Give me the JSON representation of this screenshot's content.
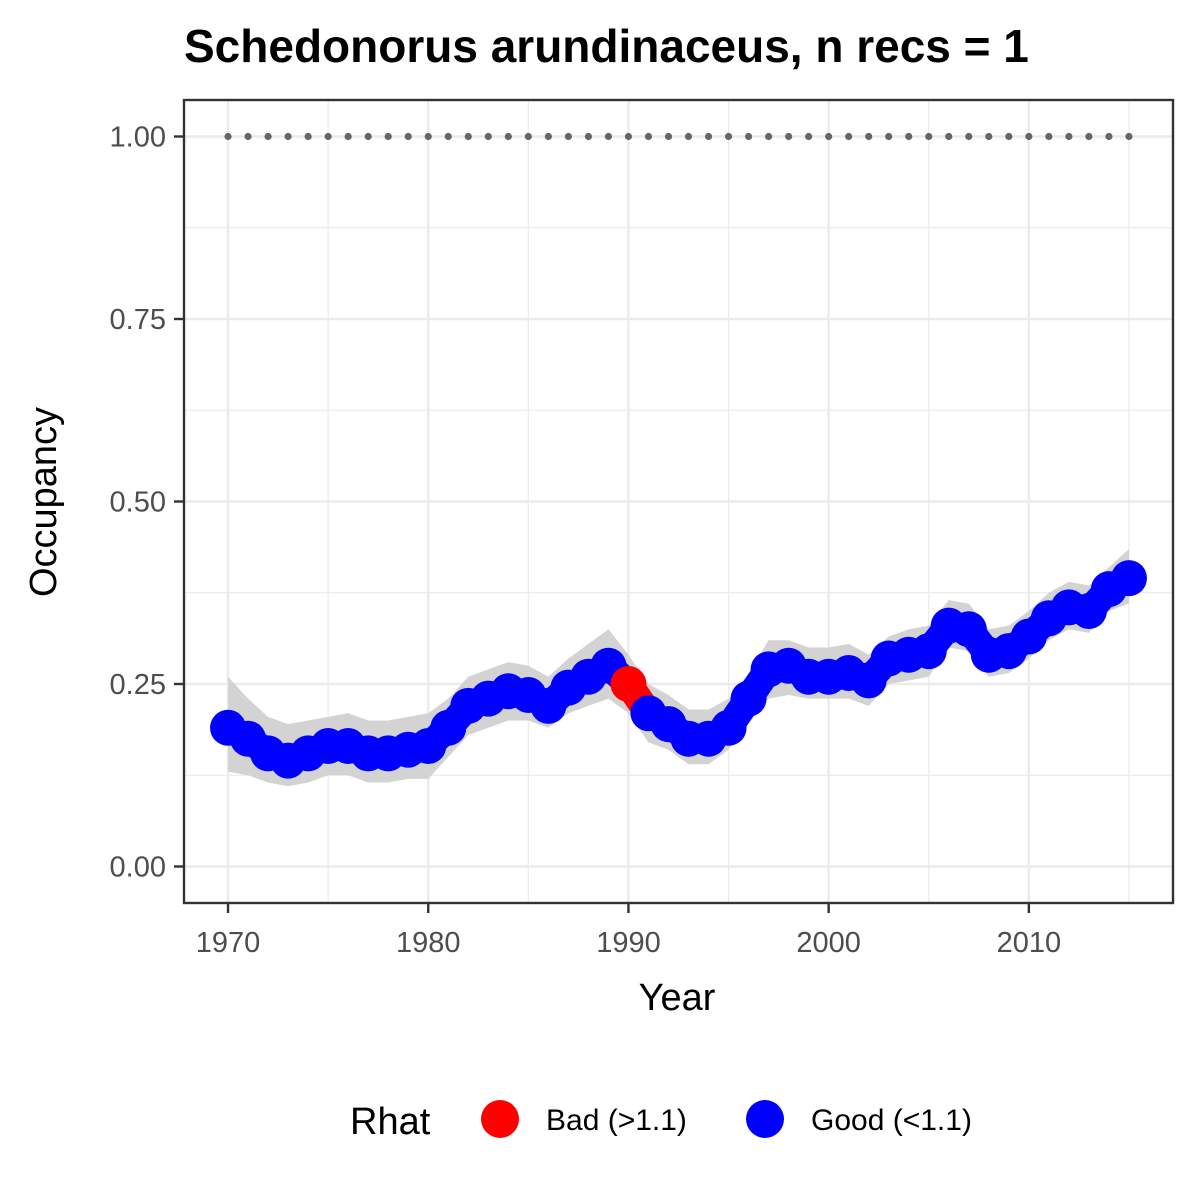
{
  "chart_data": {
    "type": "line",
    "title": "Schedonorus arundinaceus, n recs = 1",
    "xlabel": "Year",
    "ylabel": "Occupancy",
    "xlim": [
      1967.8,
      2017.2
    ],
    "ylim": [
      -0.05,
      1.05
    ],
    "x_ticks": [
      1970,
      1980,
      1990,
      2000,
      2010
    ],
    "x_tick_labels": [
      "1970",
      "1980",
      "1990",
      "2000",
      "2010"
    ],
    "y_ticks": [
      0,
      0.25,
      0.5,
      0.75,
      1.0
    ],
    "y_tick_labels": [
      "0.00",
      "0.25",
      "0.50",
      "0.75",
      "1.00"
    ],
    "grid": true,
    "legend": {
      "title": "Rhat",
      "position": "bottom",
      "items": [
        {
          "label": "Bad (>1.1)",
          "color": "#ff0000"
        },
        {
          "label": "Good (<1.1)",
          "color": "#0000ff"
        }
      ]
    },
    "reference_line": {
      "y": 1.0,
      "style": "dotted",
      "color": "#666666"
    },
    "x": [
      1970,
      1971,
      1972,
      1973,
      1974,
      1975,
      1976,
      1977,
      1978,
      1979,
      1980,
      1981,
      1982,
      1983,
      1984,
      1985,
      1986,
      1987,
      1988,
      1989,
      1990,
      1991,
      1992,
      1993,
      1994,
      1995,
      1996,
      1997,
      1998,
      1999,
      2000,
      2001,
      2002,
      2003,
      2004,
      2005,
      2006,
      2007,
      2008,
      2009,
      2010,
      2011,
      2012,
      2013,
      2014,
      2015
    ],
    "series": [
      {
        "values": [
          0.19,
          0.175,
          0.155,
          0.145,
          0.155,
          0.165,
          0.165,
          0.155,
          0.155,
          0.16,
          0.165,
          0.19,
          0.22,
          0.23,
          0.24,
          0.235,
          0.22,
          0.245,
          0.26,
          0.275,
          0.25,
          0.21,
          0.195,
          0.175,
          0.175,
          0.19,
          0.23,
          0.27,
          0.275,
          0.26,
          0.26,
          0.265,
          0.255,
          0.285,
          0.29,
          0.295,
          0.33,
          0.325,
          0.29,
          0.295,
          0.315,
          0.34,
          0.355,
          0.35,
          0.38,
          0.395
        ],
        "lower": [
          0.13,
          0.125,
          0.115,
          0.11,
          0.115,
          0.125,
          0.125,
          0.115,
          0.115,
          0.12,
          0.12,
          0.15,
          0.18,
          0.19,
          0.2,
          0.2,
          0.19,
          0.21,
          0.22,
          0.23,
          0.21,
          0.17,
          0.16,
          0.14,
          0.14,
          0.16,
          0.2,
          0.23,
          0.235,
          0.23,
          0.23,
          0.23,
          0.22,
          0.25,
          0.255,
          0.26,
          0.3,
          0.295,
          0.26,
          0.265,
          0.285,
          0.31,
          0.325,
          0.32,
          0.35,
          0.36
        ],
        "upper": [
          0.26,
          0.23,
          0.205,
          0.195,
          0.2,
          0.205,
          0.21,
          0.2,
          0.2,
          0.205,
          0.21,
          0.23,
          0.26,
          0.27,
          0.28,
          0.275,
          0.26,
          0.285,
          0.305,
          0.325,
          0.29,
          0.25,
          0.235,
          0.215,
          0.215,
          0.23,
          0.265,
          0.31,
          0.31,
          0.3,
          0.3,
          0.305,
          0.29,
          0.315,
          0.325,
          0.33,
          0.365,
          0.36,
          0.325,
          0.33,
          0.35,
          0.375,
          0.39,
          0.385,
          0.41,
          0.435
        ],
        "rhat_status": [
          "good",
          "good",
          "good",
          "good",
          "good",
          "good",
          "good",
          "good",
          "good",
          "good",
          "good",
          "good",
          "good",
          "good",
          "good",
          "good",
          "good",
          "good",
          "good",
          "good",
          "bad",
          "good",
          "good",
          "good",
          "good",
          "good",
          "good",
          "good",
          "good",
          "good",
          "good",
          "good",
          "good",
          "good",
          "good",
          "good",
          "good",
          "good",
          "good",
          "good",
          "good",
          "good",
          "good",
          "good",
          "good",
          "good"
        ]
      }
    ]
  },
  "colors": {
    "good": "#0000ff",
    "bad": "#ff0000",
    "ribbon": "#d3d3d3",
    "reference": "#666666",
    "grid": "#ebebeb",
    "panel_border": "#333333",
    "tick_text": "#4d4d4d"
  }
}
